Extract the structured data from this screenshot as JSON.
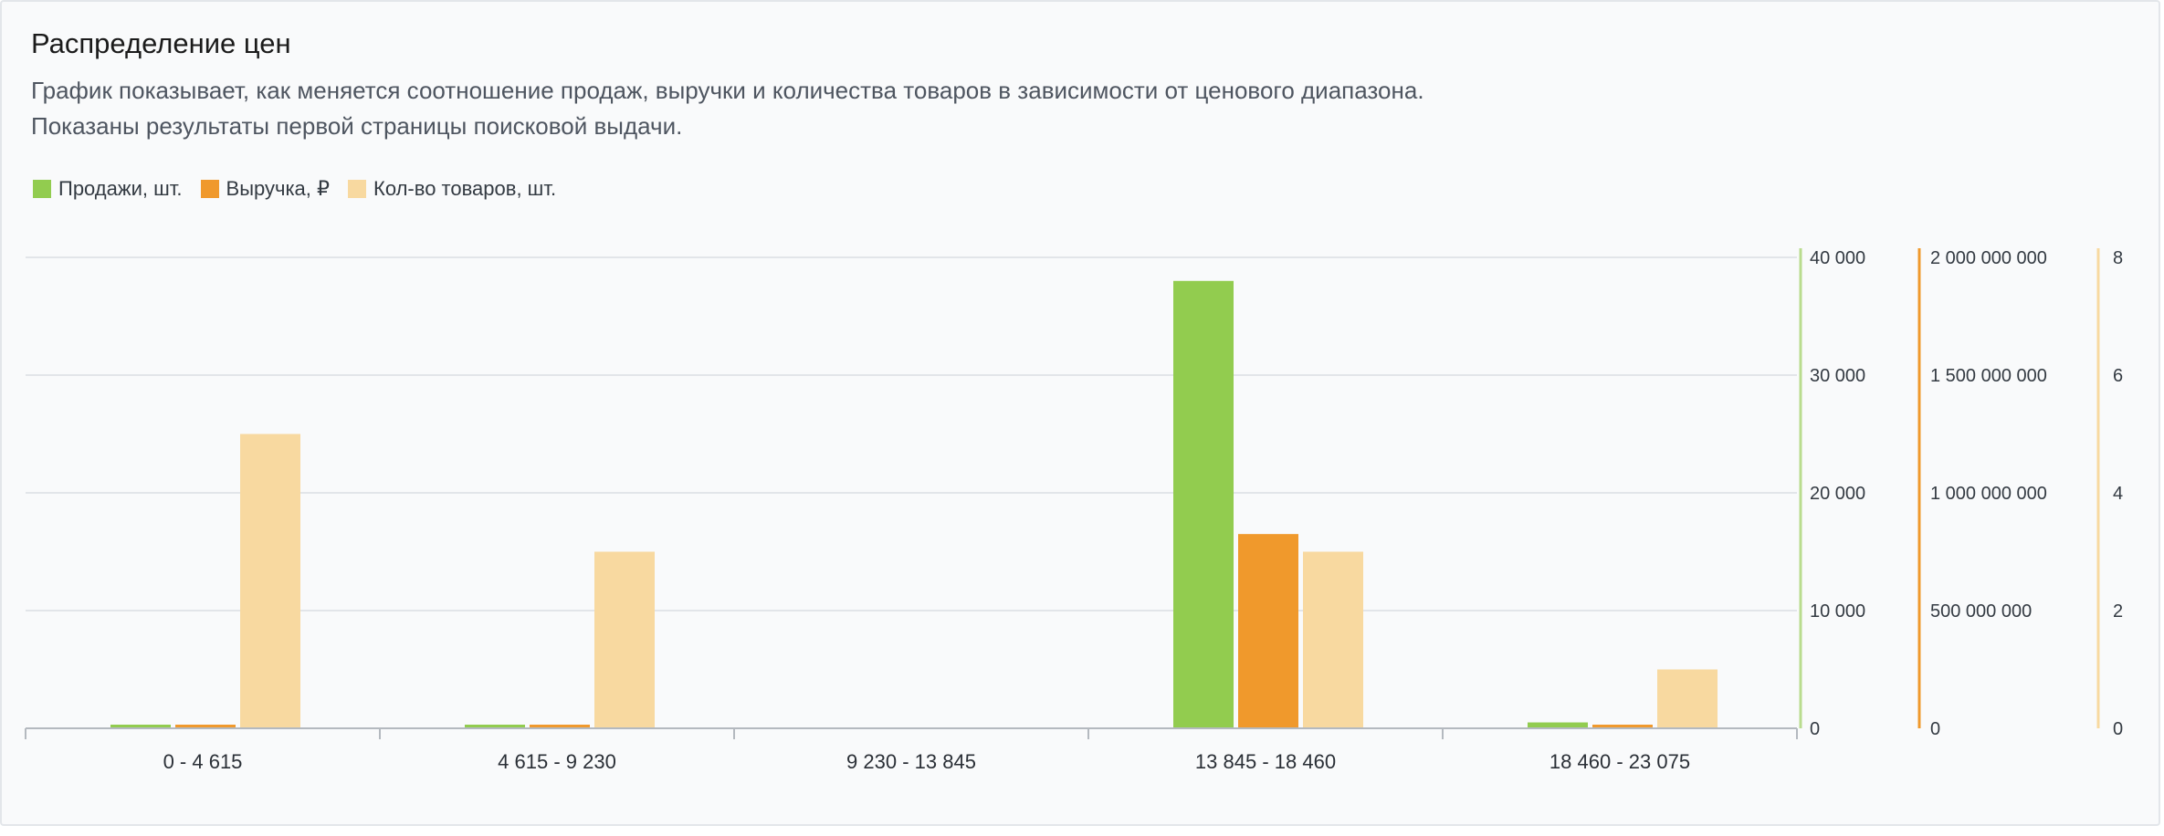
{
  "header": {
    "title": "Распределение цен",
    "subtitle_line1": "График показывает, как меняется соотношение продаж, выручки и количества товаров в зависимости от ценового диапазона.",
    "subtitle_line2": "Показаны результаты первой страницы поисковой выдачи."
  },
  "legend": [
    {
      "label": "Продажи, шт.",
      "color": "#92cc4f"
    },
    {
      "label": "Выручка, ₽",
      "color": "#f0992c"
    },
    {
      "label": "Кол-во товаров, шт.",
      "color": "#f8d9a0"
    }
  ],
  "chart_data": {
    "type": "bar",
    "categories": [
      "0 - 4 615",
      "4 615 - 9 230",
      "9 230 - 13 845",
      "13 845 - 18 460",
      "18 460 - 23 075"
    ],
    "series": [
      {
        "name": "Продажи, шт.",
        "color": "#92cc4f",
        "axis": "y1",
        "values": [
          300,
          150,
          0,
          38000,
          500
        ]
      },
      {
        "name": "Выручка, ₽",
        "color": "#f0992c",
        "axis": "y2",
        "values": [
          9000000,
          8000000,
          0,
          825000000,
          5000000
        ]
      },
      {
        "name": "Кол-во товаров, шт.",
        "color": "#f8d9a0",
        "axis": "y3",
        "values": [
          5,
          3,
          0,
          3,
          1
        ]
      }
    ],
    "axes": {
      "y1": {
        "ylim": [
          0,
          40000
        ],
        "ticks": [
          "0",
          "10 000",
          "20 000",
          "30 000",
          "40 000"
        ],
        "color": "#b9dc8e"
      },
      "y2": {
        "ylim": [
          0,
          2000000000
        ],
        "ticks": [
          "0",
          "500 000 000",
          "1 000 000 000",
          "1 500 000 000",
          "2 000 000 000"
        ],
        "color": "#f0992c"
      },
      "y3": {
        "ylim": [
          0,
          8
        ],
        "ticks": [
          "0",
          "2",
          "4",
          "6",
          "8"
        ],
        "color": "#f8d9a0"
      }
    },
    "grid": true,
    "legend_position": "top-left"
  }
}
